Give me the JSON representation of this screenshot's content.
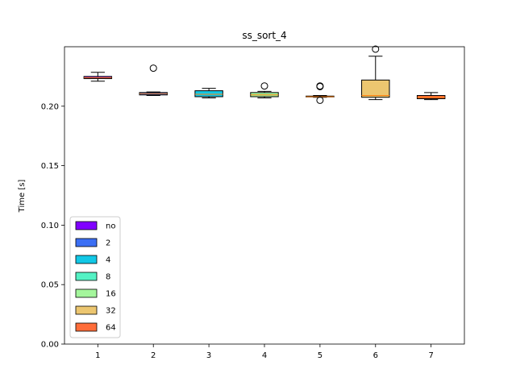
{
  "chart_data": {
    "type": "box",
    "title": "ss_sort_4",
    "xlabel": "",
    "ylabel": "Time [s]",
    "ylim": [
      0.0,
      0.25
    ],
    "yticks": [
      0.0,
      0.05,
      0.1,
      0.15,
      0.2
    ],
    "ytick_labels": [
      "0.00",
      "0.05",
      "0.10",
      "0.15",
      "0.20"
    ],
    "categories": [
      "1",
      "2",
      "3",
      "4",
      "5",
      "6",
      "7"
    ],
    "grid": false,
    "legend_location": "lower-left",
    "legend": [
      {
        "label": "no",
        "color": "#8000ff"
      },
      {
        "label": "2",
        "color": "#3b6ff4"
      },
      {
        "label": "4",
        "color": "#12c8e6"
      },
      {
        "label": "8",
        "color": "#54f2c4"
      },
      {
        "label": "16",
        "color": "#a4f69c"
      },
      {
        "label": "32",
        "color": "#ecc670"
      },
      {
        "label": "64",
        "color": "#ff6d3a"
      }
    ],
    "boxes": [
      {
        "category": "1",
        "color": "#8000ff",
        "whislo": 0.221,
        "q1": 0.2232,
        "median": 0.224,
        "q3": 0.225,
        "whishi": 0.2285,
        "fliers": []
      },
      {
        "category": "2",
        "color": "#3b6ff4",
        "whislo": 0.209,
        "q1": 0.2095,
        "median": 0.2105,
        "q3": 0.2115,
        "whishi": 0.212,
        "fliers": [
          0.232
        ]
      },
      {
        "category": "3",
        "color": "#12c8e6",
        "whislo": 0.207,
        "q1": 0.208,
        "median": 0.21,
        "q3": 0.213,
        "whishi": 0.215,
        "fliers": []
      },
      {
        "category": "4",
        "color": "#a4f69c",
        "whislo": 0.207,
        "q1": 0.208,
        "median": 0.2095,
        "q3": 0.2115,
        "whishi": 0.2125,
        "fliers": [
          0.217
        ]
      },
      {
        "category": "5",
        "color": "#ecc670",
        "whislo": 0.2075,
        "q1": 0.2078,
        "median": 0.208,
        "q3": 0.2085,
        "whishi": 0.209,
        "fliers": [
          0.205,
          0.2165,
          0.217
        ]
      },
      {
        "category": "6",
        "color": "#ecc670",
        "whislo": 0.2055,
        "q1": 0.2075,
        "median": 0.209,
        "q3": 0.222,
        "whishi": 0.242,
        "fliers": [
          0.248
        ]
      },
      {
        "category": "7",
        "color": "#ff6d3a",
        "whislo": 0.2055,
        "q1": 0.2063,
        "median": 0.2075,
        "q3": 0.209,
        "whishi": 0.2115,
        "fliers": []
      }
    ]
  }
}
